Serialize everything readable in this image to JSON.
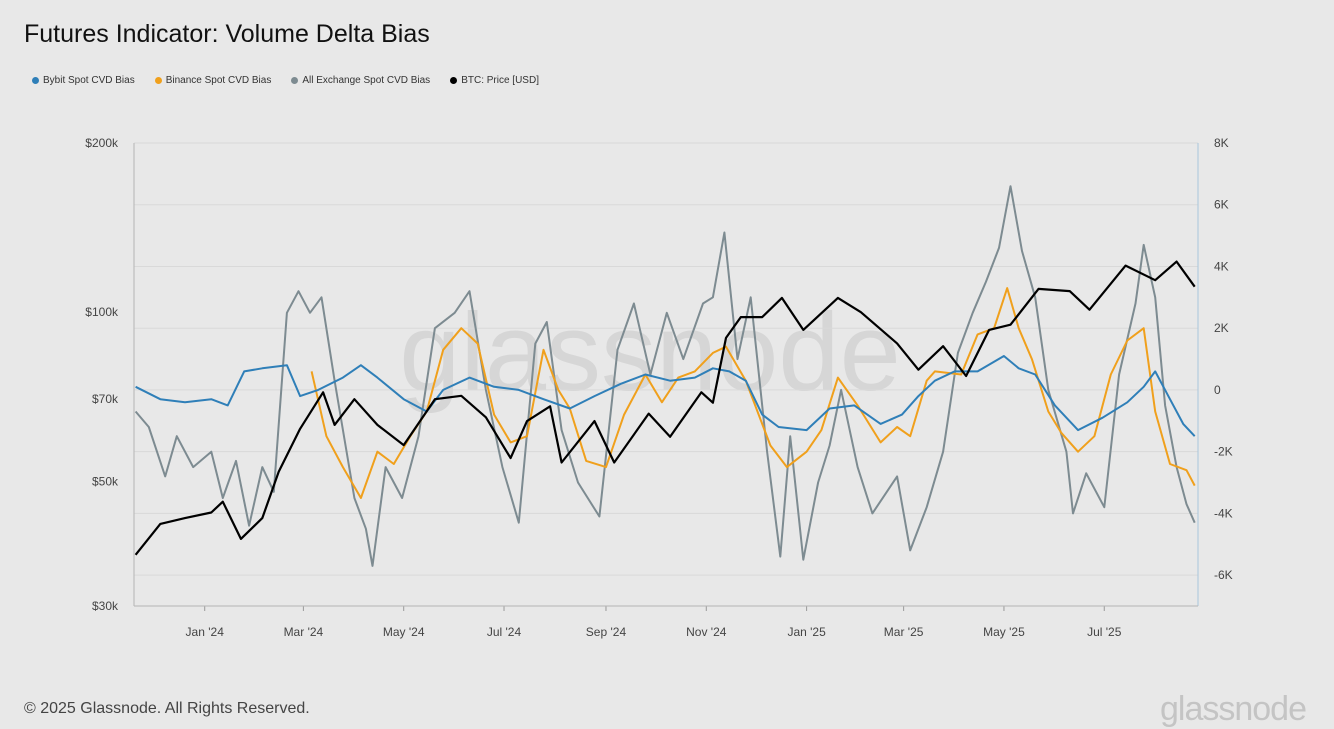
{
  "title": "Futures Indicator: Volume Delta Bias",
  "footer": "© 2025 Glassnode. All Rights Reserved.",
  "logo": "glassnode",
  "watermark": "glassnode",
  "chart_data": {
    "type": "line",
    "title": "Futures Indicator: Volume Delta Bias",
    "legend_position": "top-left",
    "grid": true,
    "x_range": [
      "2023-11-19",
      "2025-08-27"
    ],
    "x_ticks": [
      "Jan '24",
      "Mar '24",
      "May '24",
      "Jul '24",
      "Sep '24",
      "Nov '24",
      "Jan '25",
      "Mar '25",
      "May '25",
      "Jul '25"
    ],
    "x_tick_dates": [
      "2024-01-01",
      "2024-03-01",
      "2024-05-01",
      "2024-07-01",
      "2024-09-01",
      "2024-11-01",
      "2025-01-01",
      "2025-03-01",
      "2025-05-01",
      "2025-07-01"
    ],
    "y_left": {
      "scale": "log",
      "range": [
        30000,
        200000
      ],
      "ticks": [
        200000,
        100000,
        70000,
        50000,
        30000
      ],
      "tick_labels": [
        "$200k",
        "$100k",
        "$70k",
        "$50k",
        "$30k"
      ]
    },
    "y_right": {
      "scale": "linear",
      "range": [
        -7000,
        8000
      ],
      "ticks": [
        8000,
        6000,
        4000,
        2000,
        0,
        -2000,
        -4000,
        -6000
      ],
      "tick_labels": [
        "8K",
        "6K",
        "4K",
        "2K",
        "0",
        "-2K",
        "-4K",
        "-6K"
      ]
    },
    "series": [
      {
        "name": "Bybit Spot CVD Bias",
        "color": "#2f7fb8",
        "axis": "right",
        "x": [
          "2023-11-20",
          "2023-12-05",
          "2023-12-20",
          "2024-01-05",
          "2024-01-15",
          "2024-01-25",
          "2024-02-05",
          "2024-02-20",
          "2024-02-28",
          "2024-03-10",
          "2024-03-25",
          "2024-04-05",
          "2024-04-15",
          "2024-05-01",
          "2024-05-15",
          "2024-05-25",
          "2024-06-10",
          "2024-06-25",
          "2024-07-10",
          "2024-07-25",
          "2024-08-10",
          "2024-08-25",
          "2024-09-10",
          "2024-09-25",
          "2024-10-10",
          "2024-10-25",
          "2024-11-05",
          "2024-11-15",
          "2024-11-25",
          "2024-12-05",
          "2024-12-15",
          "2025-01-01",
          "2025-01-15",
          "2025-01-30",
          "2025-02-15",
          "2025-02-28",
          "2025-03-10",
          "2025-03-20",
          "2025-04-01",
          "2025-04-15",
          "2025-05-01",
          "2025-05-10",
          "2025-05-20",
          "2025-06-01",
          "2025-06-15",
          "2025-06-30",
          "2025-07-15",
          "2025-07-25",
          "2025-08-01",
          "2025-08-10",
          "2025-08-18",
          "2025-08-25"
        ],
        "values": [
          100,
          -300,
          -400,
          -300,
          -500,
          600,
          700,
          800,
          -200,
          0,
          400,
          800,
          400,
          -300,
          -700,
          0,
          400,
          100,
          0,
          -300,
          -600,
          -200,
          200,
          500,
          300,
          400,
          700,
          600,
          300,
          -800,
          -1200,
          -1300,
          -600,
          -500,
          -1100,
          -800,
          -200,
          300,
          600,
          600,
          1100,
          700,
          500,
          -500,
          -1300,
          -900,
          -400,
          100,
          600,
          -300,
          -1100,
          -1500
        ]
      },
      {
        "name": "Binance Spot CVD Bias",
        "color": "#f0a01c",
        "axis": "right",
        "x": [
          "2024-03-06",
          "2024-03-15",
          "2024-03-25",
          "2024-04-05",
          "2024-04-15",
          "2024-04-25",
          "2024-05-05",
          "2024-05-15",
          "2024-05-25",
          "2024-06-05",
          "2024-06-15",
          "2024-06-25",
          "2024-07-05",
          "2024-07-15",
          "2024-07-25",
          "2024-08-03",
          "2024-08-10",
          "2024-08-20",
          "2024-09-01",
          "2024-09-12",
          "2024-09-25",
          "2024-10-05",
          "2024-10-15",
          "2024-10-25",
          "2024-11-05",
          "2024-11-13",
          "2024-11-25",
          "2024-12-10",
          "2024-12-20",
          "2025-01-01",
          "2025-01-10",
          "2025-01-20",
          "2025-02-01",
          "2025-02-15",
          "2025-02-25",
          "2025-03-05",
          "2025-03-15",
          "2025-03-20",
          "2025-04-05",
          "2025-04-15",
          "2025-04-25",
          "2025-05-03",
          "2025-05-10",
          "2025-05-18",
          "2025-05-28",
          "2025-06-05",
          "2025-06-15",
          "2025-06-25",
          "2025-07-05",
          "2025-07-15",
          "2025-07-25",
          "2025-08-01",
          "2025-08-10",
          "2025-08-20",
          "2025-08-25"
        ],
        "values": [
          600,
          -1500,
          -2500,
          -3500,
          -2000,
          -2400,
          -1500,
          -700,
          1300,
          2000,
          1500,
          -800,
          -1700,
          -1500,
          1300,
          0,
          -600,
          -2300,
          -2500,
          -800,
          500,
          -400,
          400,
          600,
          1200,
          1400,
          300,
          -1800,
          -2500,
          -2000,
          -1300,
          400,
          -500,
          -1700,
          -1200,
          -1500,
          300,
          600,
          500,
          1800,
          2000,
          3300,
          2000,
          1000,
          -700,
          -1400,
          -2000,
          -1500,
          500,
          1600,
          2000,
          -700,
          -2400,
          -2600,
          -3100
        ]
      },
      {
        "name": "All Exchange Spot CVD Bias",
        "color": "#7d8b91",
        "axis": "right",
        "x": [
          "2023-11-20",
          "2023-11-28",
          "2023-12-08",
          "2023-12-15",
          "2023-12-25",
          "2024-01-05",
          "2024-01-12",
          "2024-01-20",
          "2024-01-28",
          "2024-02-05",
          "2024-02-12",
          "2024-02-20",
          "2024-02-27",
          "2024-03-05",
          "2024-03-12",
          "2024-03-20",
          "2024-04-01",
          "2024-04-08",
          "2024-04-12",
          "2024-04-20",
          "2024-04-30",
          "2024-05-10",
          "2024-05-20",
          "2024-06-01",
          "2024-06-10",
          "2024-06-20",
          "2024-06-30",
          "2024-07-10",
          "2024-07-20",
          "2024-07-27",
          "2024-08-05",
          "2024-08-15",
          "2024-08-28",
          "2024-09-08",
          "2024-09-18",
          "2024-09-28",
          "2024-10-08",
          "2024-10-18",
          "2024-10-30",
          "2024-11-05",
          "2024-11-12",
          "2024-11-20",
          "2024-11-28",
          "2024-12-08",
          "2024-12-16",
          "2024-12-22",
          "2024-12-30",
          "2025-01-08",
          "2025-01-15",
          "2025-01-22",
          "2025-02-01",
          "2025-02-10",
          "2025-02-25",
          "2025-03-05",
          "2025-03-15",
          "2025-03-25",
          "2025-04-03",
          "2025-04-12",
          "2025-04-20",
          "2025-04-28",
          "2025-05-05",
          "2025-05-12",
          "2025-05-20",
          "2025-05-28",
          "2025-06-08",
          "2025-06-12",
          "2025-06-20",
          "2025-07-01",
          "2025-07-10",
          "2025-07-20",
          "2025-07-25",
          "2025-08-01",
          "2025-08-07",
          "2025-08-14",
          "2025-08-20",
          "2025-08-25"
        ],
        "values": [
          -700,
          -1200,
          -2800,
          -1500,
          -2500,
          -2000,
          -3500,
          -2300,
          -4400,
          -2500,
          -3300,
          2500,
          3200,
          2500,
          3000,
          300,
          -3500,
          -4500,
          -5700,
          -2500,
          -3500,
          -1500,
          2000,
          2500,
          3200,
          0,
          -2500,
          -4300,
          1500,
          2200,
          -1300,
          -3000,
          -4100,
          1300,
          2800,
          500,
          2500,
          1000,
          2800,
          3000,
          5100,
          1000,
          3000,
          -2000,
          -5400,
          -1500,
          -5500,
          -3000,
          -1800,
          0,
          -2500,
          -4000,
          -2800,
          -5200,
          -3800,
          -2000,
          1200,
          2500,
          3500,
          4600,
          6600,
          4500,
          3000,
          0,
          -2000,
          -4000,
          -2700,
          -3800,
          500,
          2800,
          4700,
          3000,
          -500,
          -2500,
          -3700,
          -4300
        ]
      },
      {
        "name": "BTC: Price [USD]",
        "color": "#000000",
        "axis": "left",
        "x": [
          "2023-11-20",
          "2023-12-05",
          "2023-12-20",
          "2024-01-05",
          "2024-01-12",
          "2024-01-23",
          "2024-02-05",
          "2024-02-15",
          "2024-02-28",
          "2024-03-13",
          "2024-03-20",
          "2024-04-01",
          "2024-04-15",
          "2024-05-01",
          "2024-05-20",
          "2024-06-05",
          "2024-06-20",
          "2024-07-05",
          "2024-07-15",
          "2024-07-29",
          "2024-08-05",
          "2024-08-25",
          "2024-09-06",
          "2024-09-27",
          "2024-10-10",
          "2024-10-29",
          "2024-11-05",
          "2024-11-13",
          "2024-11-22",
          "2024-12-05",
          "2024-12-17",
          "2024-12-30",
          "2025-01-20",
          "2025-02-03",
          "2025-02-25",
          "2025-03-10",
          "2025-03-25",
          "2025-04-08",
          "2025-04-22",
          "2025-05-05",
          "2025-05-22",
          "2025-06-10",
          "2025-06-22",
          "2025-07-14",
          "2025-08-01",
          "2025-08-14",
          "2025-08-25"
        ],
        "values": [
          37000,
          42000,
          43000,
          44000,
          46000,
          39500,
          43000,
          52000,
          62000,
          72000,
          63000,
          70000,
          63000,
          58000,
          70000,
          71000,
          65000,
          55000,
          64000,
          68000,
          54000,
          64000,
          54000,
          66000,
          60000,
          72000,
          69000,
          90000,
          98000,
          98000,
          106000,
          93000,
          106000,
          100000,
          88000,
          79000,
          87000,
          77000,
          93000,
          95000,
          110000,
          109000,
          101000,
          121000,
          114000,
          123000,
          111000
        ]
      }
    ]
  }
}
